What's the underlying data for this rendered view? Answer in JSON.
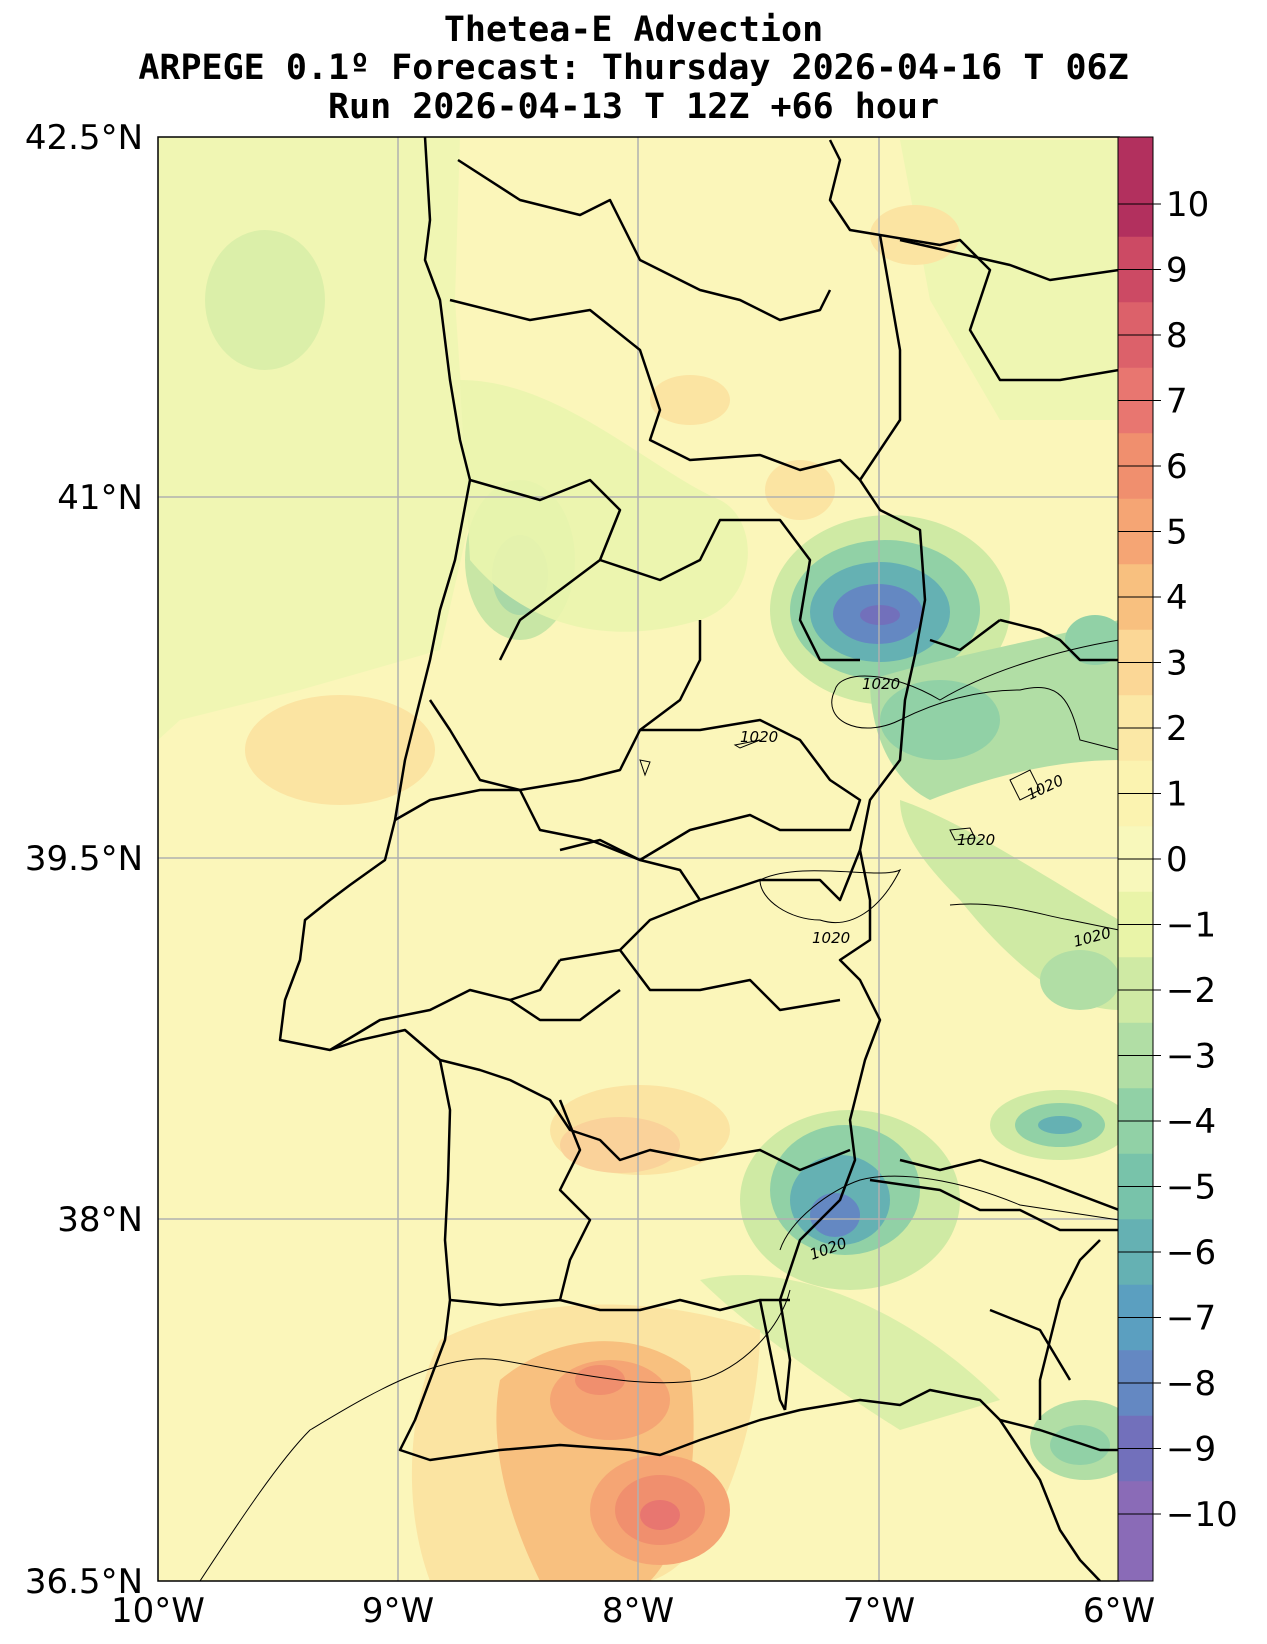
{
  "title": {
    "line1": "Thetea-E Advection",
    "line2": "ARPEGE 0.1º Forecast: Thursday 2026-04-16 T 06Z",
    "line3": "Run 2026-04-13 T 12Z +66 hour"
  },
  "axes": {
    "lat_labels": [
      "42.5°N",
      "41°N",
      "39.5°N",
      "38°N",
      "36.5°N"
    ],
    "lon_labels": [
      "10°W",
      "9°W",
      "8°W",
      "7°W",
      "6°W"
    ]
  },
  "colorbar": {
    "labels": [
      "10",
      "9",
      "8",
      "7",
      "6",
      "5",
      "4",
      "3",
      "2",
      "1",
      "0",
      "−1",
      "−2",
      "−3",
      "−4",
      "−5",
      "−6",
      "−7",
      "−8",
      "−9",
      "−10"
    ],
    "colors": [
      "#b2305e",
      "#cc4a64",
      "#dc616a",
      "#e87670",
      "#f08f6e",
      "#f5a574",
      "#f8c07f",
      "#fbd796",
      "#fbe8a6",
      "#fbf3b0",
      "#f8f8bb",
      "#e9f4a8",
      "#cfeaa4",
      "#b1dea5",
      "#91d1a6",
      "#78c3aa",
      "#65b1b3",
      "#5b9fc0",
      "#6488c2",
      "#7270bb",
      "#8a6bb7"
    ]
  },
  "isobars": [
    "1020",
    "1020",
    "1020",
    "1020",
    "1020",
    "1020",
    "1020"
  ]
}
